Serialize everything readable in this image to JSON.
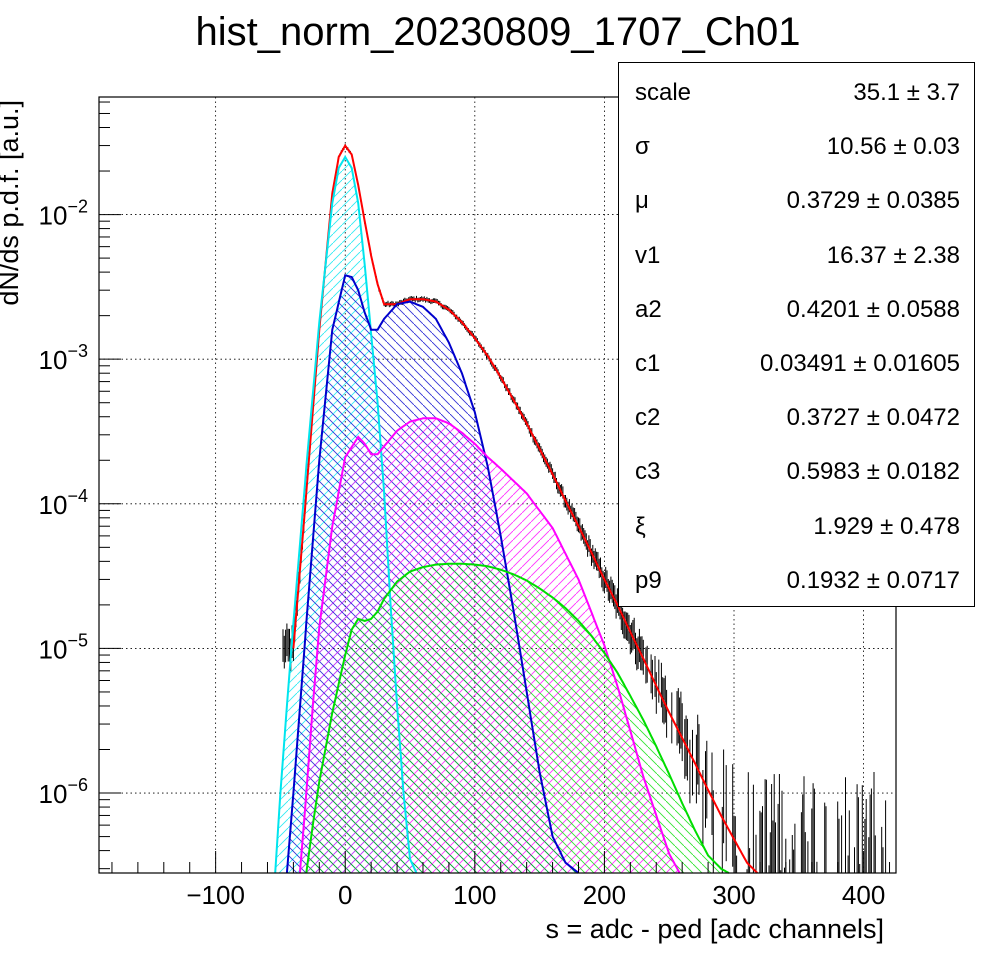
{
  "chart_data": {
    "type": "line",
    "title": "hist_norm_20230809_1707_Ch01",
    "xlabel": "s = adc - ped [adc channels]",
    "ylabel": "dN/ds p.d.f. [a.u.]",
    "xlim": [
      -190,
      425
    ],
    "ylim": [
      2.8e-07,
      0.065
    ],
    "yscale": "log",
    "grid": true,
    "x_ticks": [
      -100,
      0,
      100,
      200,
      300,
      400
    ],
    "x_tick_labels": [
      "−100",
      "0",
      "100",
      "200",
      "300",
      "400"
    ],
    "y_ticks": [
      1e-06,
      1e-05,
      0.0001,
      0.001,
      0.01
    ],
    "y_tick_labels": [
      {
        "base": "10",
        "exp": "−6"
      },
      {
        "base": "10",
        "exp": "−5"
      },
      {
        "base": "10",
        "exp": "−4"
      },
      {
        "base": "10",
        "exp": "−3"
      },
      {
        "base": "10",
        "exp": "−2"
      }
    ],
    "series": [
      {
        "color": "#ff0000",
        "role": "total fit",
        "fill": "none",
        "x": [
          -40,
          -30,
          -20,
          -10,
          -5,
          0,
          5,
          10,
          15,
          20,
          25,
          30,
          40,
          50,
          60,
          70,
          80,
          90,
          100,
          110,
          120,
          130,
          140,
          150,
          160,
          170,
          180,
          190,
          200,
          210,
          220,
          230,
          240,
          250,
          260,
          270,
          280,
          290,
          300,
          310,
          318
        ],
        "y": [
          1e-05,
          0.00012,
          0.0016,
          0.014,
          0.025,
          0.03,
          0.026,
          0.016,
          0.009,
          0.0052,
          0.0033,
          0.0024,
          0.0024,
          0.0026,
          0.0026,
          0.0025,
          0.0022,
          0.0018,
          0.0014,
          0.00105,
          0.00075,
          0.00052,
          0.00036,
          0.00024,
          0.00016,
          0.000105,
          7e-05,
          4.6e-05,
          3e-05,
          2e-05,
          1.3e-05,
          8.5e-06,
          5.5e-06,
          3.6e-06,
          2.4e-06,
          1.6e-06,
          1.05e-06,
          7e-07,
          4.8e-07,
          3.3e-07,
          2.8e-07
        ]
      },
      {
        "color": "#00e5ee",
        "role": "pedestal component",
        "fill": "hatch",
        "x": [
          -54,
          -50,
          -45,
          -40,
          -30,
          -20,
          -10,
          -5,
          0,
          5,
          10,
          15,
          20,
          25,
          30,
          35,
          40,
          45,
          50,
          55
        ],
        "y": [
          2.8e-07,
          1e-06,
          4e-06,
          1.5e-05,
          0.00018,
          0.0018,
          0.012,
          0.021,
          0.025,
          0.021,
          0.012,
          0.0045,
          0.0015,
          0.0005,
          0.00012,
          2e-05,
          4e-06,
          1e-06,
          3.5e-07,
          2.8e-07
        ]
      },
      {
        "color": "#0000cc",
        "role": "1st component",
        "fill": "hatch",
        "x": [
          -45,
          -40,
          -30,
          -20,
          -10,
          0,
          5,
          10,
          15,
          20,
          25,
          30,
          40,
          50,
          60,
          70,
          80,
          90,
          100,
          110,
          120,
          130,
          140,
          150,
          160,
          170,
          180
        ],
        "y": [
          2.8e-07,
          1e-06,
          1.5e-05,
          0.0002,
          0.0016,
          0.0038,
          0.0037,
          0.003,
          0.0021,
          0.0016,
          0.0016,
          0.0019,
          0.0024,
          0.0025,
          0.0023,
          0.0019,
          0.0013,
          0.0008,
          0.00043,
          0.00018,
          6e-05,
          1.8e-05,
          5e-06,
          1.4e-06,
          5e-07,
          3.3e-07,
          2.8e-07
        ]
      },
      {
        "color": "#ff00ff",
        "role": "2nd component",
        "fill": "hatch",
        "x": [
          -35,
          -30,
          -25,
          -20,
          -10,
          0,
          10,
          15,
          20,
          25,
          30,
          40,
          50,
          60,
          70,
          80,
          90,
          100,
          110,
          120,
          140,
          160,
          180,
          200,
          210,
          220,
          230,
          240,
          250,
          258
        ],
        "y": [
          2.8e-07,
          1e-06,
          4e-06,
          1.4e-05,
          7e-05,
          0.00021,
          0.00029,
          0.00026,
          0.00022,
          0.00022,
          0.00025,
          0.00032,
          0.00037,
          0.00039,
          0.00039,
          0.00036,
          0.00031,
          0.00026,
          0.00021,
          0.000175,
          0.000118,
          6.8e-05,
          3e-05,
          1.05e-05,
          5.5e-06,
          2.7e-06,
          1.3e-06,
          7e-07,
          3.8e-07,
          2.8e-07
        ]
      },
      {
        "color": "#00dd00",
        "role": "3rd component",
        "fill": "hatch",
        "x": [
          -30,
          -25,
          -20,
          -10,
          0,
          5,
          10,
          15,
          20,
          25,
          30,
          40,
          50,
          60,
          70,
          80,
          90,
          100,
          110,
          120,
          130,
          140,
          150,
          160,
          170,
          180,
          190,
          200,
          210,
          220,
          230,
          240,
          250,
          260,
          270,
          280,
          290,
          296
        ],
        "y": [
          2.8e-07,
          6e-07,
          1.2e-06,
          3.6e-06,
          9e-06,
          1.35e-05,
          1.6e-05,
          1.55e-05,
          1.6e-05,
          1.8e-05,
          2.2e-05,
          2.9e-05,
          3.4e-05,
          3.65e-05,
          3.8e-05,
          3.85e-05,
          3.85e-05,
          3.8e-05,
          3.7e-05,
          3.5e-05,
          3.25e-05,
          2.95e-05,
          2.6e-05,
          2.25e-05,
          1.9e-05,
          1.55e-05,
          1.22e-05,
          9.3e-06,
          6.8e-06,
          4.7e-06,
          3.2e-06,
          2.1e-06,
          1.35e-06,
          8.5e-07,
          5.5e-07,
          3.7e-07,
          3e-07,
          2.8e-07
        ]
      }
    ]
  },
  "stats": {
    "rows": [
      {
        "name": "scale",
        "value": "35.1",
        "error": "3.7"
      },
      {
        "name": "σ",
        "value": "10.56",
        "error": "0.03"
      },
      {
        "name": "μ",
        "value": "0.3729",
        "error": "0.0385"
      },
      {
        "name": "v1",
        "value": "16.37",
        "error": "2.38"
      },
      {
        "name": "a2",
        "value": "0.4201",
        "error": "0.0588"
      },
      {
        "name": "c1",
        "value": "0.03491",
        "error": "0.01605"
      },
      {
        "name": "c2",
        "value": "0.3727",
        "error": "0.0472"
      },
      {
        "name": "c3",
        "value": "0.5983",
        "error": "0.0182"
      },
      {
        "name": "ξ",
        "value": "1.929",
        "error": "0.478"
      },
      {
        "name": "p9",
        "value": "0.1932",
        "error": "0.0717"
      }
    ],
    "pm": "±"
  }
}
